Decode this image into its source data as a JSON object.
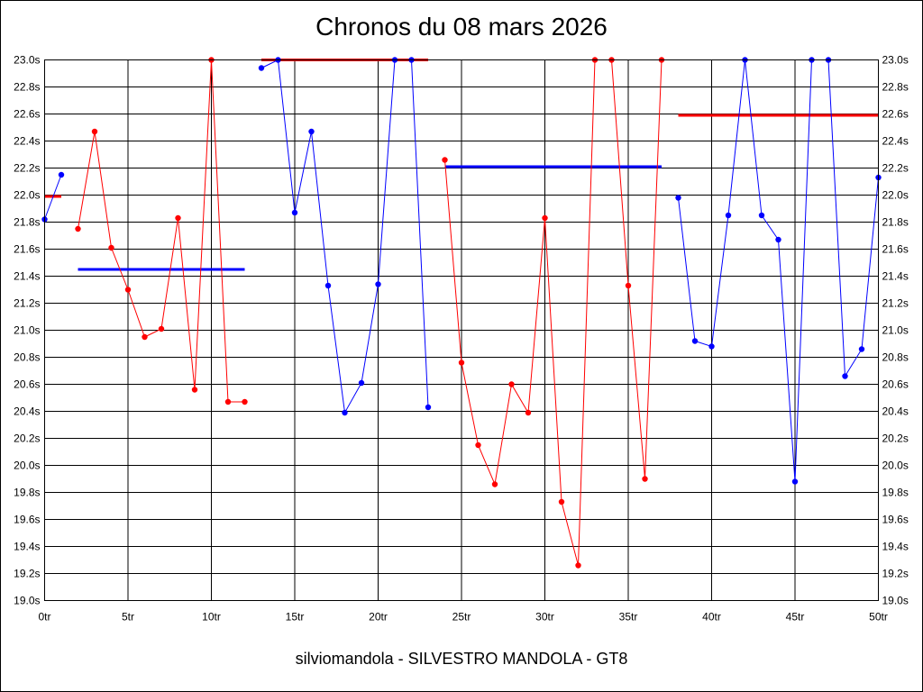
{
  "chart_data": {
    "type": "line",
    "title": "Chronos du 08 mars 2026",
    "subtitle": "silviomandola - SILVESTRO MANDOLA - GT8",
    "x_unit": "tr",
    "y_unit": "s",
    "xlim": [
      0,
      50
    ],
    "ylim": [
      19.0,
      23.0
    ],
    "x_tick_step": 5,
    "y_tick_step": 0.2,
    "grid": true,
    "y_axis_both_sides": true,
    "clip_top": 23.0,
    "segments": [
      {
        "color": "#ff0000",
        "points": [
          [
            0,
            21.99
          ]
        ]
      },
      {
        "color": "#0000ff",
        "points": [
          [
            0,
            21.82
          ],
          [
            1,
            22.15
          ]
        ]
      },
      {
        "color": "#ff0000",
        "points": [
          [
            2,
            21.75
          ],
          [
            3,
            22.47
          ],
          [
            4,
            21.61
          ],
          [
            5,
            21.3
          ],
          [
            6,
            20.95
          ],
          [
            7,
            21.01
          ],
          [
            8,
            21.83
          ],
          [
            9,
            20.56
          ],
          [
            10,
            23.0
          ],
          [
            11,
            20.47
          ],
          [
            12,
            20.47
          ]
        ]
      },
      {
        "color": "#0000ff",
        "points": [
          [
            13,
            22.94
          ],
          [
            14,
            23.0
          ],
          [
            15,
            21.87
          ],
          [
            16,
            22.47
          ],
          [
            17,
            21.33
          ],
          [
            18,
            20.39
          ],
          [
            19,
            20.61
          ],
          [
            20,
            21.34
          ],
          [
            21,
            23.0
          ],
          [
            22,
            23.0
          ],
          [
            23,
            20.43
          ]
        ]
      },
      {
        "color": "#ff0000",
        "points": [
          [
            24,
            22.26
          ],
          [
            25,
            20.76
          ],
          [
            26,
            20.15
          ],
          [
            27,
            19.86
          ],
          [
            28,
            20.6
          ],
          [
            29,
            20.39
          ],
          [
            30,
            21.83
          ],
          [
            31,
            19.73
          ],
          [
            32,
            19.26
          ],
          [
            33,
            23.0
          ],
          [
            34,
            23.0
          ],
          [
            35,
            21.33
          ],
          [
            36,
            19.9
          ],
          [
            37,
            23.0
          ]
        ]
      },
      {
        "color": "#0000ff",
        "points": [
          [
            38,
            21.98
          ],
          [
            39,
            20.92
          ],
          [
            40,
            20.88
          ],
          [
            41,
            21.85
          ],
          [
            42,
            23.0
          ],
          [
            43,
            21.85
          ],
          [
            44,
            21.67
          ],
          [
            45,
            19.88
          ],
          [
            46,
            23.0
          ],
          [
            47,
            23.0
          ],
          [
            48,
            20.66
          ],
          [
            49,
            20.86
          ],
          [
            50,
            22.13
          ]
        ]
      }
    ],
    "averages": [
      {
        "color": "#ff0000",
        "from": 0,
        "to": 1,
        "value": 21.99
      },
      {
        "color": "#0000ff",
        "from": 2,
        "to": 12,
        "value": 21.45
      },
      {
        "color": "#ff0000",
        "from": 13,
        "to": 23,
        "value": 23.0
      },
      {
        "color": "#0000ff",
        "from": 24,
        "to": 37,
        "value": 22.21
      },
      {
        "color": "#ff0000",
        "from": 38,
        "to": 50,
        "value": 22.59
      }
    ]
  }
}
